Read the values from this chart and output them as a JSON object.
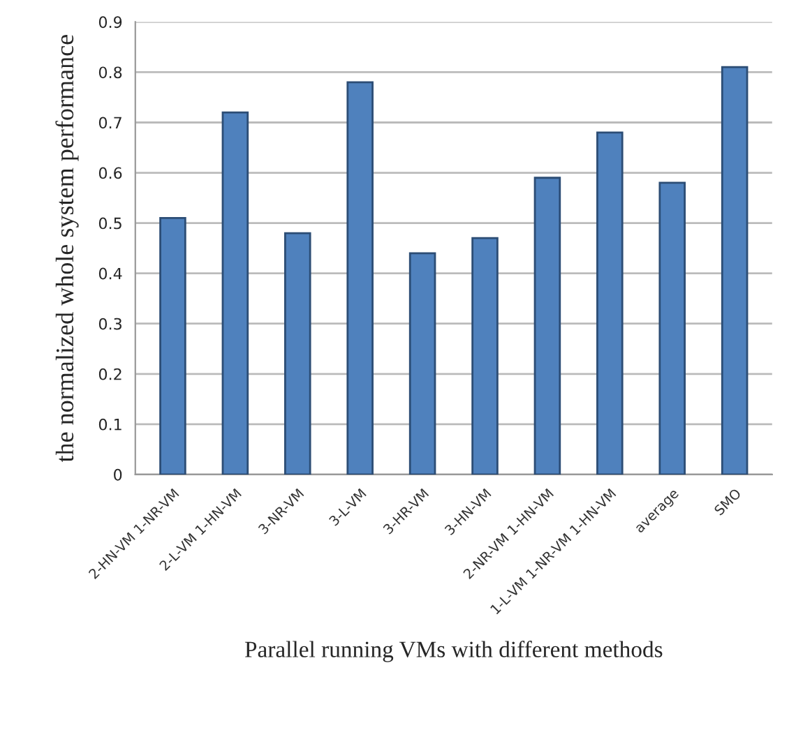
{
  "chart_data": {
    "type": "bar",
    "xlabel": "Parallel running VMs with different methods",
    "ylabel": "the normalized whole system performance",
    "categories": [
      "2-HN-VM 1-NR-VM",
      "2-L-VM 1-HN-VM",
      "3-NR-VM",
      "3-L-VM",
      "3-HR-VM",
      "3-HN-VM",
      "2-NR-VM 1-HN-VM",
      "1-L-VM 1-NR-VM 1-HN-VM",
      "average",
      "SMO"
    ],
    "values": [
      0.51,
      0.72,
      0.48,
      0.78,
      0.44,
      0.47,
      0.59,
      0.68,
      0.58,
      0.81
    ],
    "color": "#4f81bd",
    "ylim": [
      0,
      0.9
    ],
    "yticks": [
      0,
      0.1,
      0.2,
      0.3,
      0.4,
      0.5,
      0.6,
      0.7,
      0.8,
      0.9
    ],
    "grid": "y"
  }
}
